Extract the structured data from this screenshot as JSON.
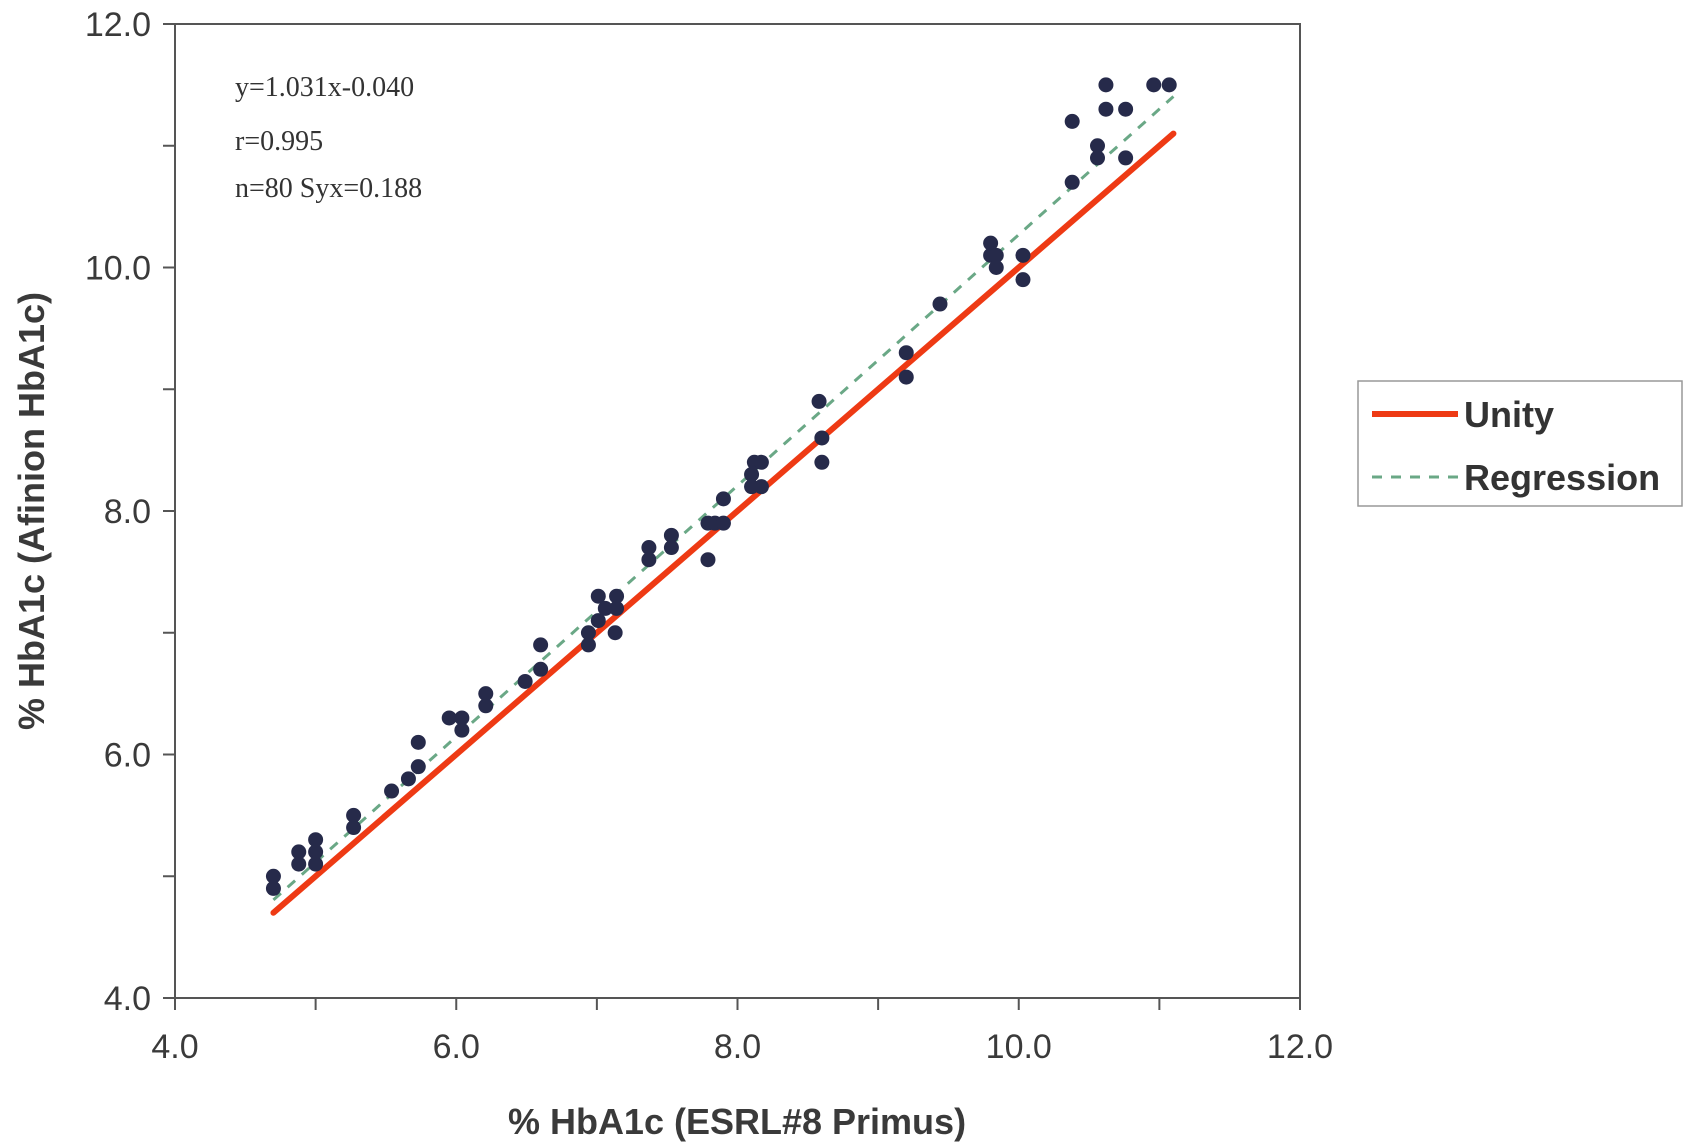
{
  "chart_data": {
    "type": "scatter",
    "xlabel": "% HbA1c (ESRL#8 Primus)",
    "ylabel": "% HbA1c (Afinion HbA1c)",
    "xlim": [
      4.0,
      12.0
    ],
    "ylim": [
      4.0,
      12.0
    ],
    "x_ticks": [
      "4.0",
      "6.0",
      "8.0",
      "10.0",
      "12.0"
    ],
    "y_ticks": [
      "4.0",
      "6.0",
      "8.0",
      "10.0",
      "12.0"
    ],
    "minor_tick_step": 1.0,
    "grid": false,
    "legend_position": "right",
    "annotations": [
      "y=1.031x-0.040",
      "r=0.995",
      "n=80 Syx=0.188"
    ],
    "lines": [
      {
        "name": "Unity",
        "style": "solid",
        "color": "#ee3a14",
        "x": [
          4.7,
          11.1
        ],
        "y": [
          4.7,
          11.1
        ]
      },
      {
        "name": "Regression",
        "style": "dashed",
        "color": "#6aa886",
        "slope": 1.031,
        "intercept": -0.04,
        "x": [
          4.7,
          11.1
        ]
      }
    ],
    "point_color": "#262a4a",
    "points": [
      [
        4.7,
        4.9
      ],
      [
        4.7,
        5.0
      ],
      [
        4.88,
        5.1
      ],
      [
        4.88,
        5.2
      ],
      [
        5.0,
        5.1
      ],
      [
        5.0,
        5.2
      ],
      [
        5.0,
        5.3
      ],
      [
        5.27,
        5.4
      ],
      [
        5.27,
        5.5
      ],
      [
        5.54,
        5.7
      ],
      [
        5.66,
        5.8
      ],
      [
        5.73,
        5.9
      ],
      [
        5.73,
        6.1
      ],
      [
        5.95,
        6.3
      ],
      [
        6.04,
        6.2
      ],
      [
        6.04,
        6.3
      ],
      [
        6.21,
        6.4
      ],
      [
        6.21,
        6.5
      ],
      [
        6.49,
        6.6
      ],
      [
        6.6,
        6.7
      ],
      [
        6.6,
        6.9
      ],
      [
        6.94,
        6.9
      ],
      [
        6.94,
        7.0
      ],
      [
        7.01,
        7.1
      ],
      [
        7.01,
        7.3
      ],
      [
        7.06,
        7.2
      ],
      [
        7.13,
        7.0
      ],
      [
        7.14,
        7.2
      ],
      [
        7.14,
        7.3
      ],
      [
        7.37,
        7.6
      ],
      [
        7.37,
        7.7
      ],
      [
        7.53,
        7.7
      ],
      [
        7.53,
        7.8
      ],
      [
        7.79,
        7.6
      ],
      [
        7.79,
        7.9
      ],
      [
        7.84,
        7.9
      ],
      [
        7.9,
        7.9
      ],
      [
        7.9,
        8.1
      ],
      [
        8.1,
        8.2
      ],
      [
        8.1,
        8.3
      ],
      [
        8.12,
        8.4
      ],
      [
        8.17,
        8.2
      ],
      [
        8.17,
        8.4
      ],
      [
        8.58,
        8.9
      ],
      [
        8.6,
        8.6
      ],
      [
        8.6,
        8.4
      ],
      [
        9.2,
        9.1
      ],
      [
        9.2,
        9.3
      ],
      [
        9.44,
        9.7
      ],
      [
        9.8,
        10.1
      ],
      [
        9.8,
        10.2
      ],
      [
        9.84,
        10.0
      ],
      [
        9.84,
        10.1
      ],
      [
        10.03,
        9.9
      ],
      [
        10.03,
        10.1
      ],
      [
        10.38,
        10.7
      ],
      [
        10.38,
        11.2
      ],
      [
        10.56,
        10.9
      ],
      [
        10.56,
        11.0
      ],
      [
        10.62,
        11.3
      ],
      [
        10.62,
        11.5
      ],
      [
        10.76,
        10.9
      ],
      [
        10.76,
        11.3
      ],
      [
        10.96,
        11.5
      ],
      [
        11.07,
        11.5
      ]
    ]
  }
}
